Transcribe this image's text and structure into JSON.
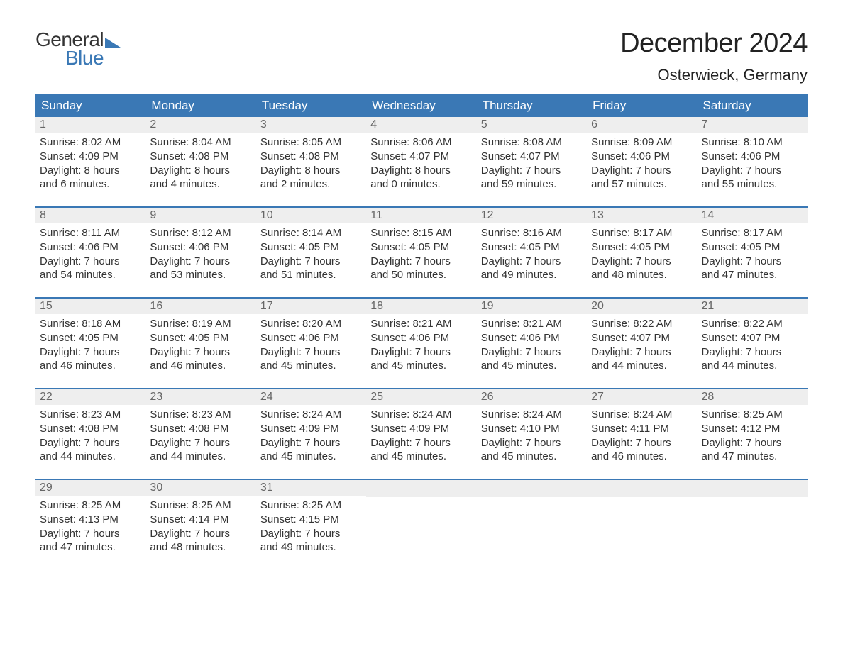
{
  "logo": {
    "text1": "General",
    "text2": "Blue",
    "color_text1": "#333333",
    "color_text2": "#3a78b5"
  },
  "title": "December 2024",
  "subtitle": "Osterwieck, Germany",
  "colors": {
    "header_bg": "#3a78b5",
    "header_text": "#ffffff",
    "daynum_bg": "#eeeeee",
    "daynum_text": "#666666",
    "week_border": "#3a78b5",
    "body_text": "#333333",
    "background": "#ffffff"
  },
  "typography": {
    "title_fontsize": 38,
    "subtitle_fontsize": 22,
    "day_header_fontsize": 17,
    "daynum_fontsize": 16,
    "content_fontsize": 15
  },
  "day_headers": [
    "Sunday",
    "Monday",
    "Tuesday",
    "Wednesday",
    "Thursday",
    "Friday",
    "Saturday"
  ],
  "weeks": [
    [
      {
        "day": "1",
        "sunrise": "Sunrise: 8:02 AM",
        "sunset": "Sunset: 4:09 PM",
        "dl1": "Daylight: 8 hours",
        "dl2": "and 6 minutes."
      },
      {
        "day": "2",
        "sunrise": "Sunrise: 8:04 AM",
        "sunset": "Sunset: 4:08 PM",
        "dl1": "Daylight: 8 hours",
        "dl2": "and 4 minutes."
      },
      {
        "day": "3",
        "sunrise": "Sunrise: 8:05 AM",
        "sunset": "Sunset: 4:08 PM",
        "dl1": "Daylight: 8 hours",
        "dl2": "and 2 minutes."
      },
      {
        "day": "4",
        "sunrise": "Sunrise: 8:06 AM",
        "sunset": "Sunset: 4:07 PM",
        "dl1": "Daylight: 8 hours",
        "dl2": "and 0 minutes."
      },
      {
        "day": "5",
        "sunrise": "Sunrise: 8:08 AM",
        "sunset": "Sunset: 4:07 PM",
        "dl1": "Daylight: 7 hours",
        "dl2": "and 59 minutes."
      },
      {
        "day": "6",
        "sunrise": "Sunrise: 8:09 AM",
        "sunset": "Sunset: 4:06 PM",
        "dl1": "Daylight: 7 hours",
        "dl2": "and 57 minutes."
      },
      {
        "day": "7",
        "sunrise": "Sunrise: 8:10 AM",
        "sunset": "Sunset: 4:06 PM",
        "dl1": "Daylight: 7 hours",
        "dl2": "and 55 minutes."
      }
    ],
    [
      {
        "day": "8",
        "sunrise": "Sunrise: 8:11 AM",
        "sunset": "Sunset: 4:06 PM",
        "dl1": "Daylight: 7 hours",
        "dl2": "and 54 minutes."
      },
      {
        "day": "9",
        "sunrise": "Sunrise: 8:12 AM",
        "sunset": "Sunset: 4:06 PM",
        "dl1": "Daylight: 7 hours",
        "dl2": "and 53 minutes."
      },
      {
        "day": "10",
        "sunrise": "Sunrise: 8:14 AM",
        "sunset": "Sunset: 4:05 PM",
        "dl1": "Daylight: 7 hours",
        "dl2": "and 51 minutes."
      },
      {
        "day": "11",
        "sunrise": "Sunrise: 8:15 AM",
        "sunset": "Sunset: 4:05 PM",
        "dl1": "Daylight: 7 hours",
        "dl2": "and 50 minutes."
      },
      {
        "day": "12",
        "sunrise": "Sunrise: 8:16 AM",
        "sunset": "Sunset: 4:05 PM",
        "dl1": "Daylight: 7 hours",
        "dl2": "and 49 minutes."
      },
      {
        "day": "13",
        "sunrise": "Sunrise: 8:17 AM",
        "sunset": "Sunset: 4:05 PM",
        "dl1": "Daylight: 7 hours",
        "dl2": "and 48 minutes."
      },
      {
        "day": "14",
        "sunrise": "Sunrise: 8:17 AM",
        "sunset": "Sunset: 4:05 PM",
        "dl1": "Daylight: 7 hours",
        "dl2": "and 47 minutes."
      }
    ],
    [
      {
        "day": "15",
        "sunrise": "Sunrise: 8:18 AM",
        "sunset": "Sunset: 4:05 PM",
        "dl1": "Daylight: 7 hours",
        "dl2": "and 46 minutes."
      },
      {
        "day": "16",
        "sunrise": "Sunrise: 8:19 AM",
        "sunset": "Sunset: 4:05 PM",
        "dl1": "Daylight: 7 hours",
        "dl2": "and 46 minutes."
      },
      {
        "day": "17",
        "sunrise": "Sunrise: 8:20 AM",
        "sunset": "Sunset: 4:06 PM",
        "dl1": "Daylight: 7 hours",
        "dl2": "and 45 minutes."
      },
      {
        "day": "18",
        "sunrise": "Sunrise: 8:21 AM",
        "sunset": "Sunset: 4:06 PM",
        "dl1": "Daylight: 7 hours",
        "dl2": "and 45 minutes."
      },
      {
        "day": "19",
        "sunrise": "Sunrise: 8:21 AM",
        "sunset": "Sunset: 4:06 PM",
        "dl1": "Daylight: 7 hours",
        "dl2": "and 45 minutes."
      },
      {
        "day": "20",
        "sunrise": "Sunrise: 8:22 AM",
        "sunset": "Sunset: 4:07 PM",
        "dl1": "Daylight: 7 hours",
        "dl2": "and 44 minutes."
      },
      {
        "day": "21",
        "sunrise": "Sunrise: 8:22 AM",
        "sunset": "Sunset: 4:07 PM",
        "dl1": "Daylight: 7 hours",
        "dl2": "and 44 minutes."
      }
    ],
    [
      {
        "day": "22",
        "sunrise": "Sunrise: 8:23 AM",
        "sunset": "Sunset: 4:08 PM",
        "dl1": "Daylight: 7 hours",
        "dl2": "and 44 minutes."
      },
      {
        "day": "23",
        "sunrise": "Sunrise: 8:23 AM",
        "sunset": "Sunset: 4:08 PM",
        "dl1": "Daylight: 7 hours",
        "dl2": "and 44 minutes."
      },
      {
        "day": "24",
        "sunrise": "Sunrise: 8:24 AM",
        "sunset": "Sunset: 4:09 PM",
        "dl1": "Daylight: 7 hours",
        "dl2": "and 45 minutes."
      },
      {
        "day": "25",
        "sunrise": "Sunrise: 8:24 AM",
        "sunset": "Sunset: 4:09 PM",
        "dl1": "Daylight: 7 hours",
        "dl2": "and 45 minutes."
      },
      {
        "day": "26",
        "sunrise": "Sunrise: 8:24 AM",
        "sunset": "Sunset: 4:10 PM",
        "dl1": "Daylight: 7 hours",
        "dl2": "and 45 minutes."
      },
      {
        "day": "27",
        "sunrise": "Sunrise: 8:24 AM",
        "sunset": "Sunset: 4:11 PM",
        "dl1": "Daylight: 7 hours",
        "dl2": "and 46 minutes."
      },
      {
        "day": "28",
        "sunrise": "Sunrise: 8:25 AM",
        "sunset": "Sunset: 4:12 PM",
        "dl1": "Daylight: 7 hours",
        "dl2": "and 47 minutes."
      }
    ],
    [
      {
        "day": "29",
        "sunrise": "Sunrise: 8:25 AM",
        "sunset": "Sunset: 4:13 PM",
        "dl1": "Daylight: 7 hours",
        "dl2": "and 47 minutes."
      },
      {
        "day": "30",
        "sunrise": "Sunrise: 8:25 AM",
        "sunset": "Sunset: 4:14 PM",
        "dl1": "Daylight: 7 hours",
        "dl2": "and 48 minutes."
      },
      {
        "day": "31",
        "sunrise": "Sunrise: 8:25 AM",
        "sunset": "Sunset: 4:15 PM",
        "dl1": "Daylight: 7 hours",
        "dl2": "and 49 minutes."
      },
      {
        "empty": true
      },
      {
        "empty": true
      },
      {
        "empty": true
      },
      {
        "empty": true
      }
    ]
  ]
}
